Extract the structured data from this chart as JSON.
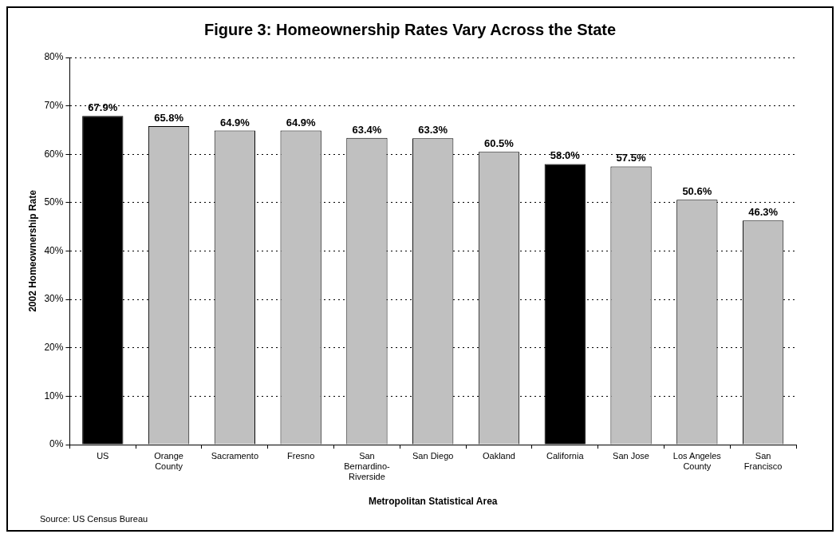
{
  "chart_data": {
    "type": "bar",
    "title": "Figure 3: Homeownership Rates Vary Across the State",
    "xlabel": "Metropolitan Statistical Area",
    "ylabel": "2002 Homeownership Rate",
    "categories": [
      "US",
      "Orange County",
      "Sacramento",
      "Fresno",
      "San Bernardino-Riverside",
      "San Diego",
      "Oakland",
      "California",
      "San Jose",
      "Los Angeles County",
      "San Francisco"
    ],
    "values": [
      67.9,
      65.8,
      64.9,
      64.9,
      63.4,
      63.3,
      60.5,
      58.0,
      57.5,
      50.6,
      46.3
    ],
    "colors": [
      "#000000",
      "#c0c0c0",
      "#c0c0c0",
      "#c0c0c0",
      "#c0c0c0",
      "#c0c0c0",
      "#c0c0c0",
      "#000000",
      "#c0c0c0",
      "#c0c0c0",
      "#c0c0c0"
    ],
    "value_labels": [
      "67.9%",
      "65.8%",
      "64.9%",
      "64.9%",
      "63.4%",
      "63.3%",
      "60.5%",
      "58.0%",
      "57.5%",
      "50.6%",
      "46.3%"
    ],
    "ylim": [
      0,
      80
    ],
    "yticks": [
      {
        "value": 0,
        "label": "0%"
      },
      {
        "value": 10,
        "label": "10%"
      },
      {
        "value": 20,
        "label": "20%"
      },
      {
        "value": 30,
        "label": "30%"
      },
      {
        "value": 40,
        "label": "40%"
      },
      {
        "value": 50,
        "label": "50%"
      },
      {
        "value": 60,
        "label": "60%"
      },
      {
        "value": 70,
        "label": "70%"
      },
      {
        "value": 80,
        "label": "80%"
      }
    ],
    "grid": "y",
    "legend": false,
    "annotations": [
      "Source: US Census Bureau"
    ]
  }
}
